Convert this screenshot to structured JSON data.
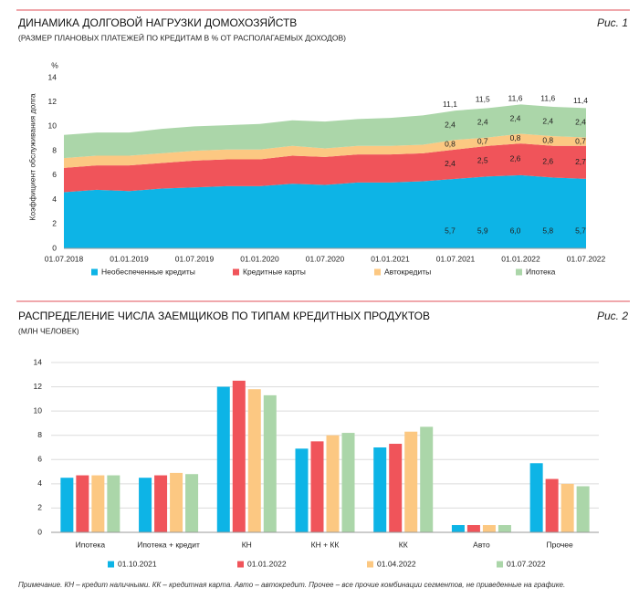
{
  "chart_data": [
    {
      "type": "area",
      "stacked": true,
      "title": "ДИНАМИКА ДОЛГОВОЙ НАГРУЗКИ ДОМОХОЗЯЙСТВ",
      "subtitle": "(РАЗМЕР ПЛАНОВЫХ ПЛАТЕЖЕЙ ПО КРЕДИТАМ В % ОТ РАСПОЛАГАЕМЫХ ДОХОДОВ)",
      "figure_label": "Рис. 1",
      "y_unit": "%",
      "ylabel": "Коэффициент обслуживания долга",
      "x": [
        "01.07.2018",
        null,
        "01.01.2019",
        null,
        "01.07.2019",
        null,
        "01.01.2020",
        null,
        "01.07.2020",
        null,
        "01.01.2021",
        null,
        "01.07.2021",
        null,
        "01.01.2022",
        null,
        "01.07.2022"
      ],
      "series": [
        {
          "name": "Необеспеченные кредиты",
          "color": "#0db4e6",
          "values": [
            4.6,
            4.8,
            4.7,
            4.9,
            5.0,
            5.1,
            5.1,
            5.3,
            5.2,
            5.4,
            5.4,
            5.5,
            5.7,
            5.9,
            6.0,
            5.8,
            5.7
          ],
          "value_labels": [
            null,
            null,
            null,
            null,
            null,
            null,
            null,
            null,
            null,
            null,
            null,
            null,
            "5,7",
            "5,9",
            "6,0",
            "5,8",
            "5,7"
          ]
        },
        {
          "name": "Кредитные карты",
          "color": "#f0545a",
          "values": [
            2.0,
            2.0,
            2.1,
            2.1,
            2.2,
            2.2,
            2.2,
            2.3,
            2.3,
            2.3,
            2.3,
            2.3,
            2.4,
            2.5,
            2.6,
            2.6,
            2.7
          ],
          "value_labels": [
            null,
            null,
            null,
            null,
            null,
            null,
            null,
            null,
            null,
            null,
            null,
            null,
            "2,4",
            "2,5",
            "2,6",
            "2,6",
            "2,7"
          ]
        },
        {
          "name": "Автокредиты",
          "color": "#fcc882",
          "values": [
            0.8,
            0.8,
            0.8,
            0.8,
            0.8,
            0.8,
            0.8,
            0.8,
            0.7,
            0.7,
            0.7,
            0.7,
            0.8,
            0.7,
            0.8,
            0.8,
            0.7
          ],
          "value_labels": [
            null,
            null,
            null,
            null,
            null,
            null,
            null,
            null,
            null,
            null,
            null,
            null,
            "0,8",
            "0,7",
            "0,8",
            "0,8",
            "0,7"
          ]
        },
        {
          "name": "Ипотека",
          "color": "#abd6a9",
          "values": [
            1.9,
            1.9,
            1.9,
            2.0,
            2.0,
            2.0,
            2.1,
            2.1,
            2.2,
            2.2,
            2.3,
            2.4,
            2.4,
            2.4,
            2.4,
            2.4,
            2.4
          ],
          "value_labels": [
            null,
            null,
            null,
            null,
            null,
            null,
            null,
            null,
            null,
            null,
            null,
            null,
            "2,4",
            "2,4",
            "2,4",
            "2,4",
            "2,4"
          ]
        }
      ],
      "total_values": [
        null,
        null,
        null,
        null,
        null,
        null,
        null,
        null,
        null,
        null,
        null,
        null,
        11.1,
        11.5,
        11.6,
        11.6,
        11.4
      ],
      "total_labels": [
        null,
        null,
        null,
        null,
        null,
        null,
        null,
        null,
        null,
        null,
        null,
        null,
        "11,1",
        "11,5",
        "11,6",
        "11,6",
        "11,4"
      ],
      "ylim": [
        0,
        14
      ],
      "yticks": [
        0,
        2,
        4,
        6,
        8,
        10,
        12,
        14
      ],
      "grid": false,
      "legend": "bottom"
    },
    {
      "type": "bar",
      "title": "РАСПРЕДЕЛЕНИЕ ЧИСЛА ЗАЕМЩИКОВ ПО ТИПАМ КРЕДИТНЫХ ПРОДУКТОВ",
      "subtitle": "(МЛН ЧЕЛОВЕК)",
      "figure_label": "Рис. 2",
      "categories": [
        "Ипотека",
        "Ипотека + кредит",
        "КН",
        "КН + КК",
        "КК",
        "Авто",
        "Прочее"
      ],
      "series": [
        {
          "name": "01.10.2021",
          "color": "#0db4e6",
          "values": [
            4.5,
            4.5,
            12.0,
            6.9,
            7.0,
            0.6,
            5.7
          ]
        },
        {
          "name": "01.01.2022",
          "color": "#f0545a",
          "values": [
            4.7,
            4.7,
            12.5,
            7.5,
            7.3,
            0.6,
            4.4
          ]
        },
        {
          "name": "01.04.2022",
          "color": "#fcc882",
          "values": [
            4.7,
            4.9,
            11.8,
            8.0,
            8.3,
            0.6,
            4.0
          ]
        },
        {
          "name": "01.07.2022",
          "color": "#abd6a9",
          "values": [
            4.7,
            4.8,
            11.3,
            8.2,
            8.7,
            0.6,
            3.8
          ]
        }
      ],
      "ylim": [
        0,
        14
      ],
      "yticks": [
        0,
        2,
        4,
        6,
        8,
        10,
        12,
        14
      ],
      "grid": true,
      "legend": "bottom"
    }
  ],
  "note": "Примечание. КН – кредит наличными. КК – кредитная карта. Авто – автокредит. Прочее – все прочие комбинации сегментов, не приведенные на графике."
}
